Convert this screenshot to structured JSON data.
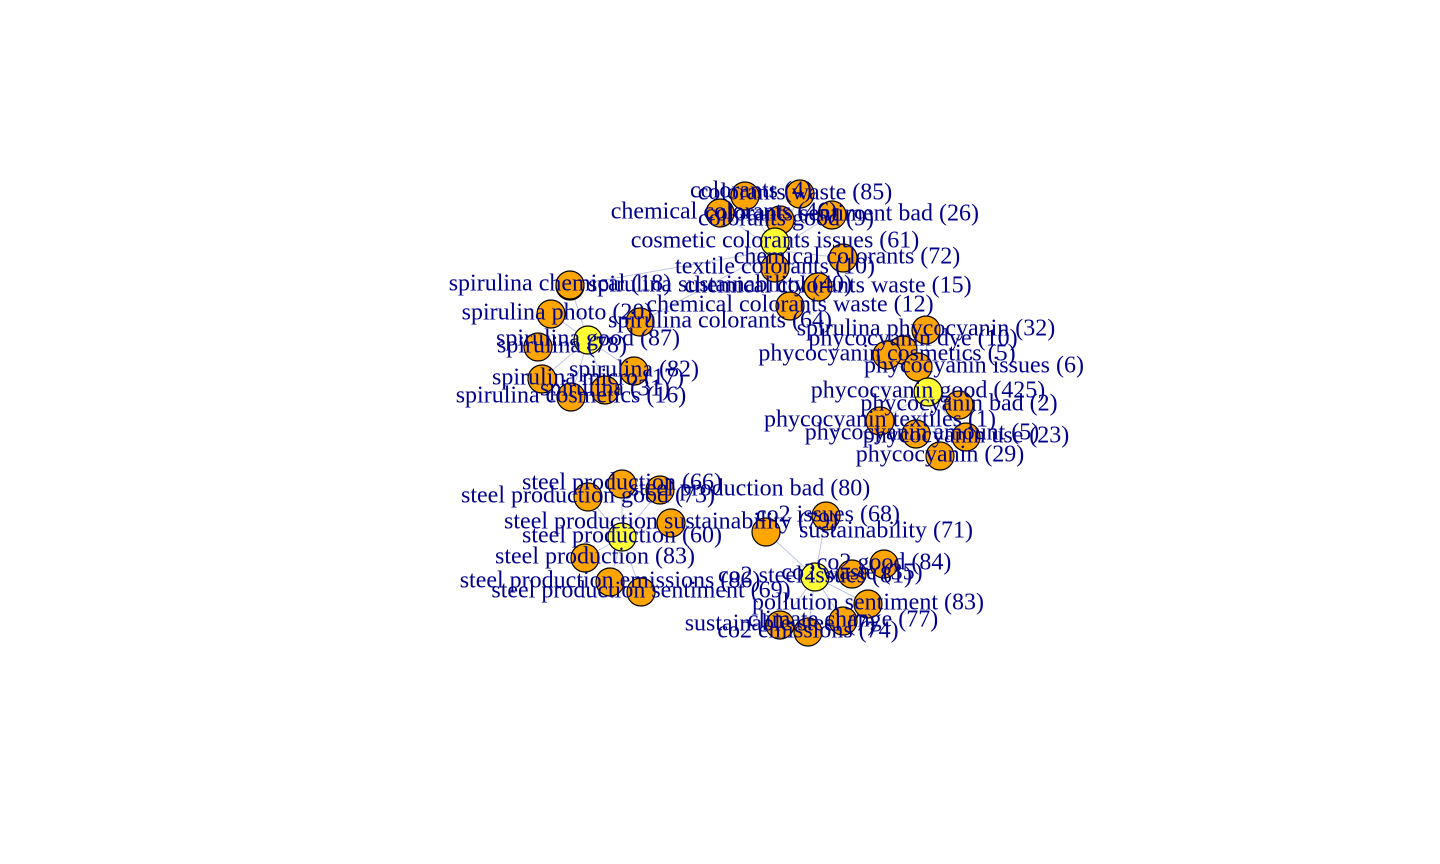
{
  "colors": {
    "background": "#ffffff",
    "hub_node": "#ffff33",
    "leaf_node": "#ffa500",
    "label_text": "#00008b",
    "edge": "#b8bedc"
  },
  "graph": {
    "clusters": [
      {
        "hub": "cosmetic colorants issues (61)",
        "nodes": [
          "colorants waste (85)",
          "colorants (4)",
          "chemical colorants (46)",
          "colorants sentiment bad (26)",
          "colorants good (9)",
          "cosmetic colorants issues (61)",
          "chemical colorants (72)",
          "textile colorants (10)",
          "chemical colorants waste (15)",
          "chemical colorants waste (12)",
          "spirulina sustainability (40)",
          "spirulina colorants (64)"
        ]
      },
      {
        "hub": "spirulina good (87)",
        "nodes": [
          "spirulina chemical (18)",
          "spirulina photo (20)",
          "spirulina good (87)",
          "spirulina (78)",
          "spirulina (82)",
          "spirulina micro (17)",
          "spirulina cosmetics (16)",
          "spirulina (31)"
        ]
      },
      {
        "hub": "phycocyanin good (425)",
        "nodes": [
          "spirulina phycocyanin (32)",
          "phycocyanin dye (10)",
          "phycocyanin cosmetics (5)",
          "phycocyanin issues (6)",
          "phycocyanin good (425)",
          "phycocyanin bad (2)",
          "phycocyanin textiles (1)",
          "phycocyanin amount (5)",
          "phycocyanin use (23)",
          "phycocyanin (29)"
        ]
      },
      {
        "hub": "steel production (60)",
        "nodes": [
          "steel production (66)",
          "steel production good (73)",
          "steel production bad (80)",
          "steel production sustainability (79)",
          "steel production (60)",
          "steel production (83)",
          "steel production emissions (86)",
          "steel production sentiment (69)"
        ]
      },
      {
        "hub": "co2 steel issues (81)",
        "nodes": [
          "co2 issues (68)",
          "sustainability (71)",
          "co2 steel issues (81)",
          "co2 good (84)",
          "co2 waste (35)",
          "pollution sentiment (83)",
          "climate change (77)",
          "sustainable steel (7)",
          "co2 emissions (74)"
        ]
      }
    ]
  }
}
